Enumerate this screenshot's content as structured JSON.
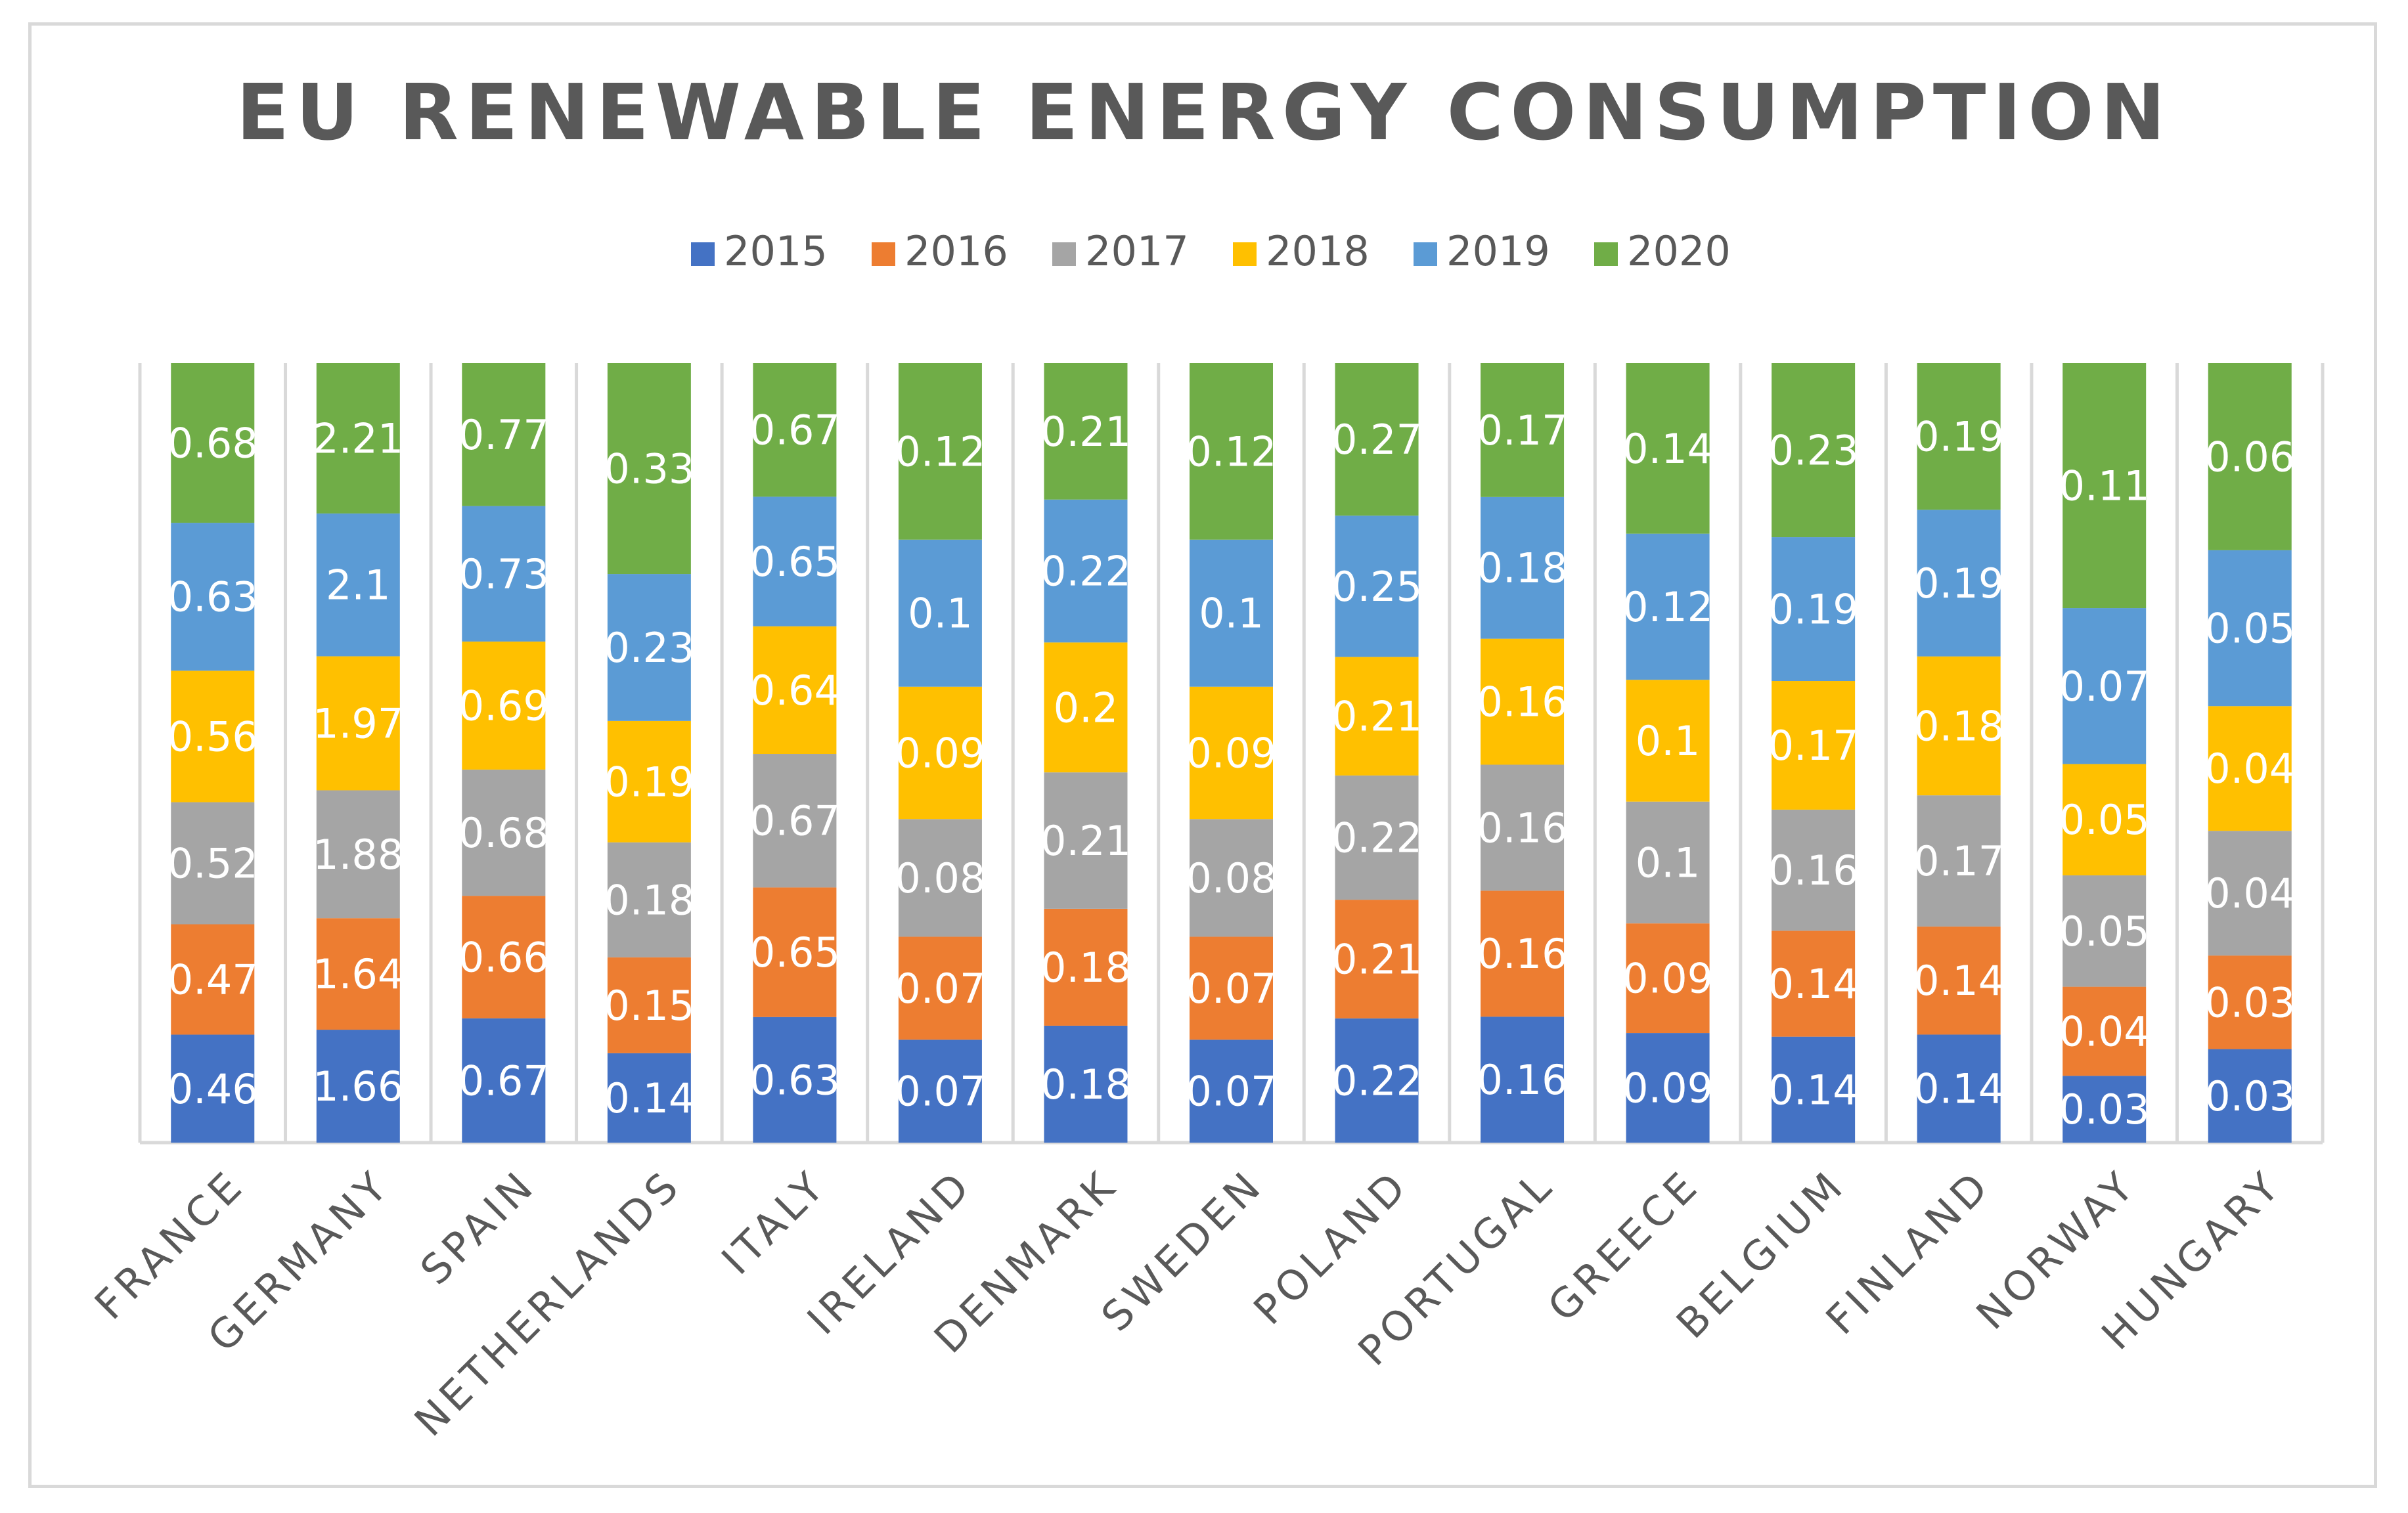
{
  "chart_data": {
    "type": "stacked-bar-100",
    "title": "EU RENEWABLE ENERGY CONSUMPTION",
    "xlabel": "",
    "ylabel": "",
    "legend_position": "top",
    "grid": false,
    "categories": [
      "FRANCE",
      "GERMANY",
      "SPAIN",
      "NETHERLANDS",
      "ITALY",
      "IRELAND",
      "DENMARK",
      "SWEDEN",
      "POLAND",
      "PORTUGAL",
      "GREECE",
      "BELGIUM",
      "FINLAND",
      "NORWAY",
      "HUNGARY"
    ],
    "series": [
      {
        "name": "2015",
        "color": "#4472c4",
        "values": [
          0.46,
          1.66,
          0.67,
          0.14,
          0.63,
          0.07,
          0.18,
          0.07,
          0.22,
          0.16,
          0.09,
          0.14,
          0.14,
          0.03,
          0.03
        ]
      },
      {
        "name": "2016",
        "color": "#ed7d31",
        "values": [
          0.47,
          1.64,
          0.66,
          0.15,
          0.65,
          0.07,
          0.18,
          0.07,
          0.21,
          0.16,
          0.09,
          0.14,
          0.14,
          0.04,
          0.03
        ]
      },
      {
        "name": "2017",
        "color": "#a5a5a5",
        "values": [
          0.52,
          1.88,
          0.68,
          0.18,
          0.67,
          0.08,
          0.21,
          0.08,
          0.22,
          0.16,
          0.1,
          0.16,
          0.17,
          0.05,
          0.04
        ]
      },
      {
        "name": "2018",
        "color": "#ffc000",
        "values": [
          0.56,
          1.97,
          0.69,
          0.19,
          0.64,
          0.09,
          0.2,
          0.09,
          0.21,
          0.16,
          0.1,
          0.17,
          0.18,
          0.05,
          0.04
        ]
      },
      {
        "name": "2019",
        "color": "#5b9bd5",
        "values": [
          0.63,
          2.1,
          0.73,
          0.23,
          0.65,
          0.1,
          0.22,
          0.1,
          0.25,
          0.18,
          0.12,
          0.19,
          0.19,
          0.07,
          0.05
        ]
      },
      {
        "name": "2020",
        "color": "#70ad47",
        "values": [
          0.68,
          2.21,
          0.77,
          0.33,
          0.67,
          0.12,
          0.21,
          0.12,
          0.27,
          0.17,
          0.14,
          0.23,
          0.19,
          0.11,
          0.06
        ]
      }
    ]
  }
}
